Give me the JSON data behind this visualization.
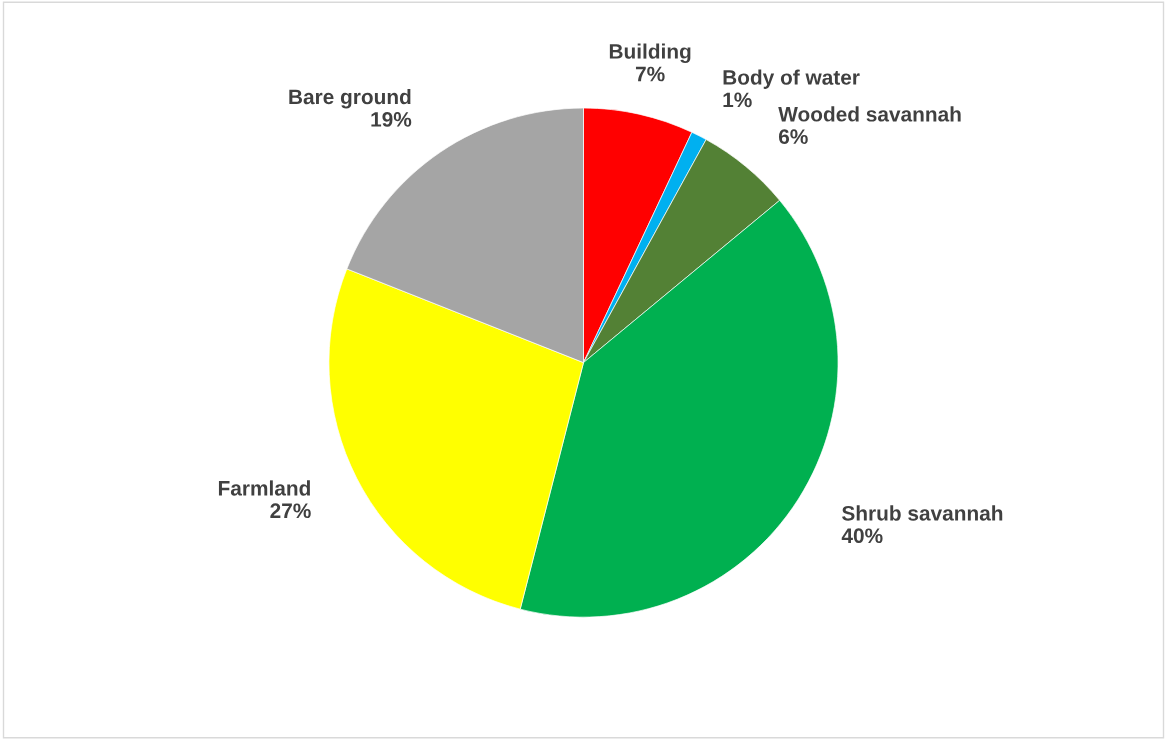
{
  "chart_data": {
    "type": "pie",
    "categories": [
      "Building",
      "Body of water",
      "Wooded savannah",
      "Shrub savannah",
      "Farmland",
      "Bare ground"
    ],
    "values": [
      7,
      1,
      6,
      40,
      27,
      19
    ],
    "value_labels": [
      "7%",
      "1%",
      "6%",
      "40%",
      "27%",
      "19%"
    ],
    "colors": [
      "#ff0000",
      "#00b0f0",
      "#538135",
      "#00b050",
      "#ffff00",
      "#a5a5a5"
    ],
    "legend": false
  }
}
